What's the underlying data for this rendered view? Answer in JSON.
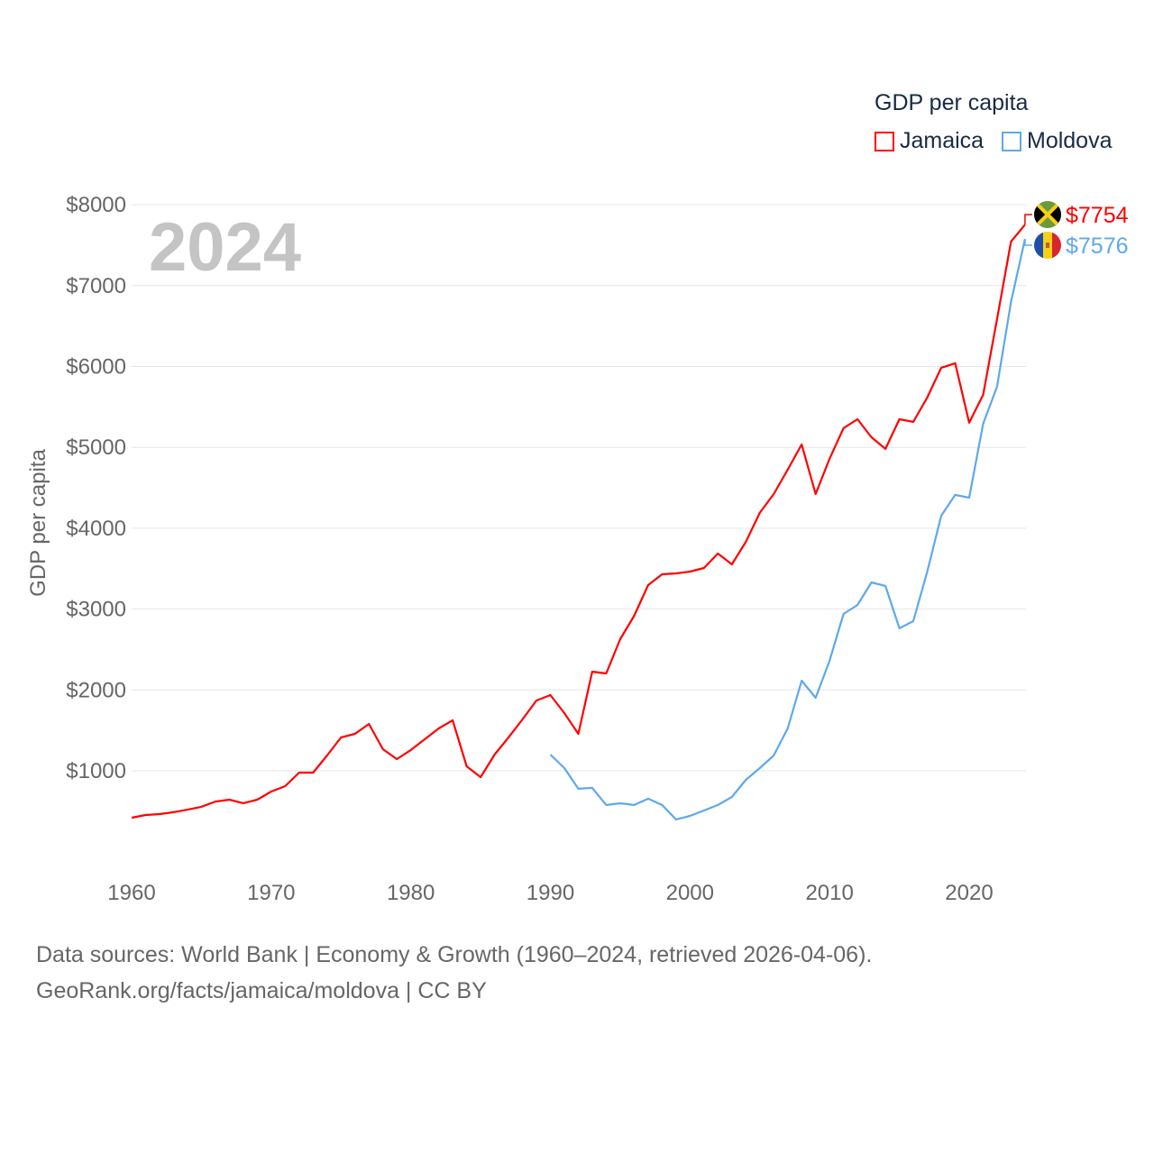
{
  "chart_data": {
    "type": "line",
    "title": "GDP per capita",
    "year_label": "2024",
    "xlabel": "",
    "ylabel": "GDP per capita",
    "xlim": [
      1960,
      2024
    ],
    "ylim": [
      0,
      8000
    ],
    "x_ticks": [
      "1960",
      "1970",
      "1980",
      "1990",
      "2000",
      "2010",
      "2020"
    ],
    "y_ticks": [
      "$1000",
      "$2000",
      "$3000",
      "$4000",
      "$5000",
      "$6000",
      "$7000",
      "$8000"
    ],
    "grid": true,
    "legend_placement": "top-right",
    "series": [
      {
        "name": "Jamaica",
        "color": "#ff0000",
        "end_label": "$7754",
        "start_year": 1960,
        "values": [
          420,
          454,
          465,
          488,
          520,
          555,
          620,
          643,
          600,
          643,
          744,
          811,
          978,
          978,
          1190,
          1413,
          1457,
          1580,
          1268,
          1145,
          1257,
          1390,
          1524,
          1625,
          1056,
          922,
          1201,
          1413,
          1636,
          1870,
          1936,
          1714,
          1457,
          2226,
          2204,
          2628,
          2918,
          3297,
          3430,
          3441,
          3464,
          3508,
          3687,
          3553,
          3832,
          4189,
          4423,
          4724,
          5036,
          4423,
          4858,
          5237,
          5348,
          5125,
          4981,
          5348,
          5315,
          5616,
          5984,
          6040,
          5304,
          5650,
          6586,
          7544,
          7754
        ]
      },
      {
        "name": "Moldova",
        "color": "#5ea8ee",
        "end_label": "$7576",
        "start_year": 1990,
        "values": [
          1201,
          1034,
          778,
          789,
          577,
          599,
          577,
          655,
          577,
          399,
          443,
          510,
          577,
          677,
          889,
          1034,
          1190,
          1524,
          2115,
          1903,
          2360,
          2940,
          3051,
          3330,
          3286,
          2762,
          2851,
          3464,
          4155,
          4412,
          4378,
          5292,
          5750,
          6798,
          7576
        ]
      }
    ]
  },
  "footer": {
    "line1": "Data sources: World Bank | Economy & Growth (1960–2024, retrieved 2026-04-06).",
    "line2": "GeoRank.org/facts/jamaica/moldova | CC BY"
  }
}
